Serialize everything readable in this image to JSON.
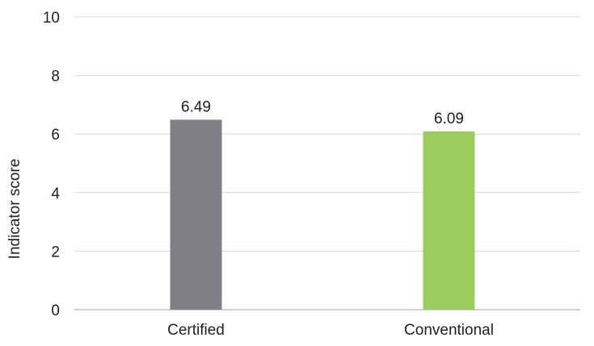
{
  "chart_data": {
    "type": "bar",
    "title": "",
    "xlabel": "",
    "ylabel": "Indicator score",
    "categories": [
      "Certified",
      "Conventional"
    ],
    "values": [
      6.49,
      6.09
    ],
    "data_labels": [
      "6.49",
      "6.09"
    ],
    "bar_colors": [
      "#808184",
      "#9ccb5f"
    ],
    "ylim": [
      0,
      10
    ],
    "yticks": [
      0,
      2,
      4,
      6,
      8,
      10
    ],
    "grid": true,
    "legend": "none"
  },
  "colors": {
    "grid": "#d9d9d9",
    "axis": "#bfbfbf",
    "text": "#231f20"
  }
}
